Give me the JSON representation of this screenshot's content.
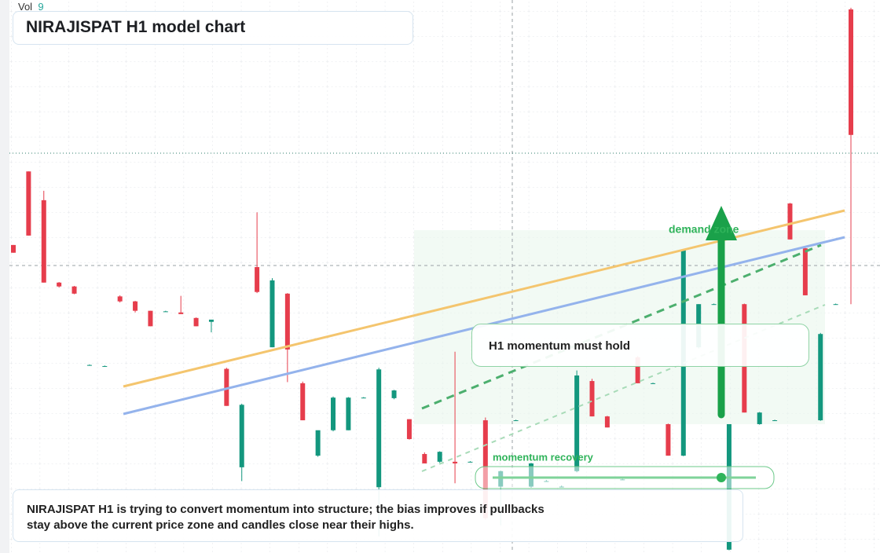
{
  "chart_data": {
    "type": "candlestick",
    "title": "NIRAJISPAT H1 model chart",
    "volume_label": "Vol",
    "volume_value": "9",
    "up_color": "#13977e",
    "down_color": "#e63d4c",
    "ylim": [
      0,
      100
    ],
    "candles": [
      [
        55.7,
        55.7,
        54.3,
        54.3
      ],
      [
        69,
        69,
        57.4,
        57.4
      ],
      [
        63.8,
        65.5,
        48.9,
        48.9
      ],
      [
        48.9,
        49,
        48,
        48.2
      ],
      [
        48.2,
        48.3,
        46.8,
        46.9
      ],
      [
        34,
        34.1,
        33.9,
        34
      ],
      [
        33.8,
        33.9,
        33.7,
        33.8
      ],
      [
        46.4,
        46.6,
        45.3,
        45.5
      ],
      [
        45.5,
        45.6,
        43.5,
        43.8
      ],
      [
        43.8,
        43.8,
        41,
        41
      ],
      [
        43.7,
        43.8,
        43.6,
        43.7
      ],
      [
        43.5,
        46.5,
        43.3,
        43.2
      ],
      [
        42.5,
        42.6,
        41,
        41
      ],
      [
        41.8,
        42,
        39.9,
        42.2
      ],
      [
        33.3,
        33.5,
        26.6,
        26.6
      ],
      [
        15.5,
        27,
        13,
        26.8
      ],
      [
        51.7,
        61.6,
        47,
        47.2
      ],
      [
        37.2,
        49.7,
        37.2,
        49.3
      ],
      [
        46.9,
        47,
        30.9,
        36.8
      ],
      [
        30.7,
        31,
        24,
        24
      ],
      [
        17.6,
        22,
        17.4,
        22.2
      ],
      [
        22.2,
        28.3,
        22,
        28.1
      ],
      [
        22.2,
        28.2,
        22.2,
        28.1
      ],
      [
        28.1,
        28.2,
        28,
        28.1
      ],
      [
        11.9,
        33.5,
        3,
        33.2
      ],
      [
        28,
        29.5,
        27.8,
        29.4
      ],
      [
        24.2,
        24.2,
        20.5,
        20.6
      ],
      [
        17.9,
        18.2,
        16.2,
        16.2
      ],
      [
        16.5,
        18.4,
        16.3,
        18.3
      ],
      [
        16.5,
        36.4,
        12.6,
        16.2
      ],
      [
        16.5,
        16.6,
        16.4,
        16.5
      ],
      [
        24,
        24.5,
        6,
        6.3
      ],
      [
        12,
        14.9,
        5,
        14.8
      ],
      [
        24,
        24.1,
        23.9,
        24
      ],
      [
        12,
        16.3,
        11.8,
        16.2
      ],
      [
        13,
        13.2,
        12.9,
        13
      ],
      [
        12,
        12.2,
        11.9,
        12
      ],
      [
        14.8,
        33,
        14.6,
        32.1
      ],
      [
        31.1,
        31.5,
        24.7,
        24.7
      ],
      [
        24.7,
        24.8,
        22.7,
        22.7
      ],
      [
        13.3,
        13.4,
        13.2,
        13.3
      ],
      [
        35.4,
        35.6,
        30.7,
        30.7
      ],
      [
        30.7,
        30.8,
        30.6,
        30.7
      ],
      [
        23.3,
        23.4,
        17.6,
        17.6
      ],
      [
        17.6,
        54.8,
        17.5,
        54.8
      ],
      [
        37.2,
        45,
        37,
        45
      ],
      [
        45,
        45.1,
        44.9,
        45
      ],
      [
        0.6,
        23.3,
        0.5,
        23.3
      ],
      [
        45,
        45.1,
        25.4,
        25.4
      ],
      [
        23.3,
        25.5,
        23.2,
        25.4
      ],
      [
        24,
        24.1,
        23.9,
        24
      ],
      [
        63.2,
        63.3,
        56.7,
        56.7
      ],
      [
        55.1,
        55.3,
        46.6,
        46.6
      ],
      [
        24,
        39.8,
        23.9,
        39.6
      ],
      [
        45,
        45.1,
        44.9,
        45
      ],
      [
        98.3,
        98.6,
        45,
        75.6
      ]
    ],
    "annotations": {
      "demand_zone": "demand zone",
      "callout": "H1 momentum must hold",
      "slider": "momentum recovery"
    },
    "comment": "NIRAJISPAT H1 is trying to convert momentum into structure; the bias improves if pullbacks stay above the current price zone and candles close near their highs."
  }
}
